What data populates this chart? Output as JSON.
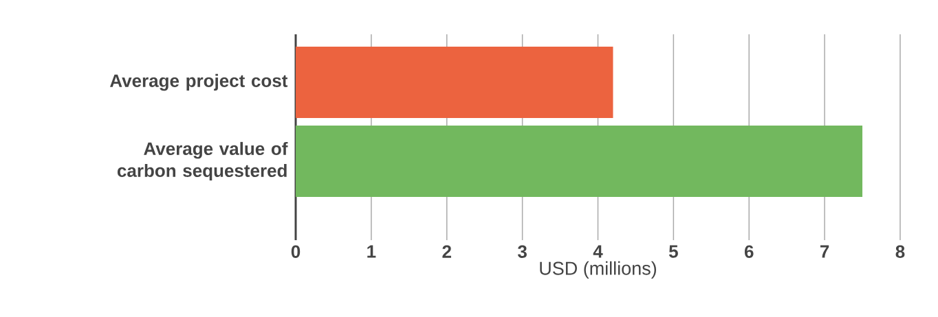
{
  "chart_data": {
    "type": "bar",
    "orientation": "horizontal",
    "xlabel": "USD (millions)",
    "categories": [
      "Average project cost",
      "Average value of carbon sequestered"
    ],
    "values": [
      4.2,
      7.5
    ],
    "colors": [
      "#ec633f",
      "#72b85e"
    ],
    "xlim": [
      0,
      8
    ],
    "xticks": [
      0,
      1,
      2,
      3,
      4,
      5,
      6,
      7,
      8
    ],
    "grid": "x"
  }
}
